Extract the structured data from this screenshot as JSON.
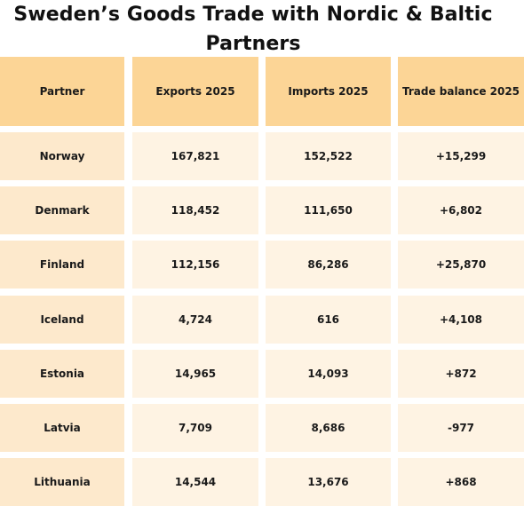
{
  "title": "Sweden’s Goods Trade with Nordic & Baltic Partners",
  "chart_data": {
    "type": "table",
    "title": "Sweden’s Goods Trade with Nordic & Baltic Partners",
    "columns": [
      "Partner",
      "Exports 2025",
      "Imports 2025",
      "Trade balance 2025"
    ],
    "rows": [
      [
        "Norway",
        "167,821",
        "152,522",
        "+15,299"
      ],
      [
        "Denmark",
        "118,452",
        "111,650",
        "+6,802"
      ],
      [
        "Finland",
        "112,156",
        "86,286",
        "+25,870"
      ],
      [
        "Iceland",
        "4,724",
        "616",
        "+4,108"
      ],
      [
        "Estonia",
        "14,965",
        "14,093",
        "+872"
      ],
      [
        "Latvia",
        "7,709",
        "8,686",
        "-977"
      ],
      [
        "Lithuania",
        "14,544",
        "13,676",
        "+868"
      ]
    ]
  },
  "colors": {
    "header_bg": "#fcd596",
    "first_col_bg": "#fde9cc",
    "cell_bg": "#fef3e3",
    "text": "#1a1a1a"
  }
}
